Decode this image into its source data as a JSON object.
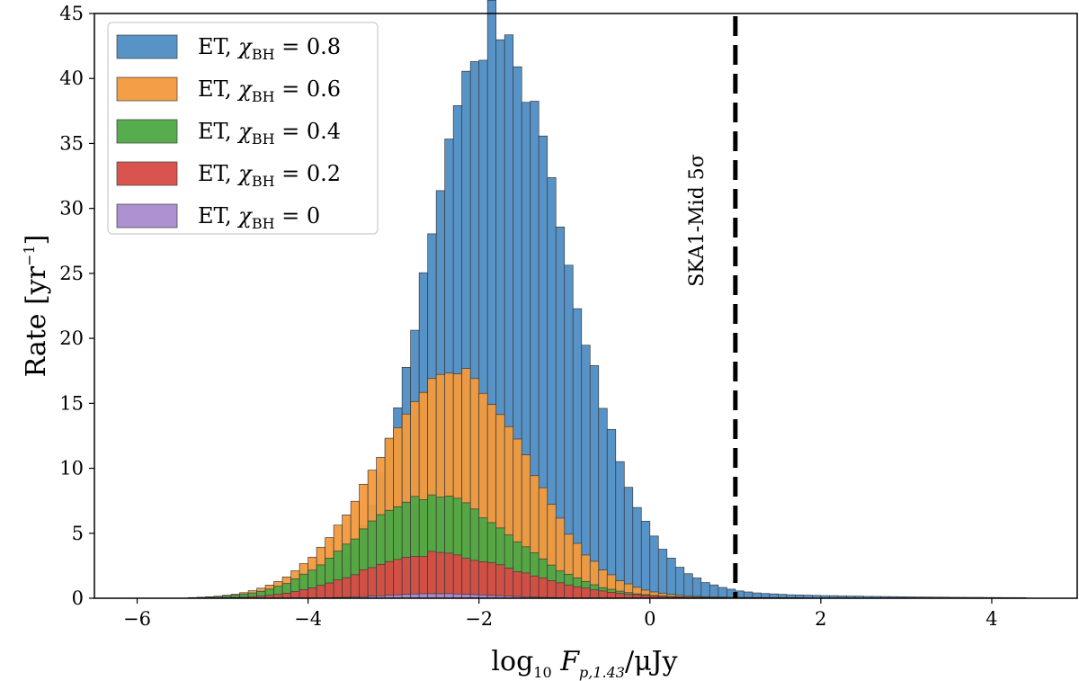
{
  "chart_data": {
    "type": "histogram",
    "title": "",
    "xlabel": {
      "main": "log",
      "sub": "10",
      "var": "F",
      "var_sub": "p,1.43",
      "unit": "/μJy"
    },
    "ylabel": {
      "main": "Rate [yr",
      "sup": "−1",
      "close": "]"
    },
    "xlim": [
      -6.5,
      5.0
    ],
    "ylim": [
      0,
      45
    ],
    "xticks": [
      -6,
      -4,
      -2,
      0,
      2,
      4
    ],
    "xtick_labels": [
      "−6",
      "−4",
      "−2",
      "0",
      "2",
      "4"
    ],
    "yticks": [
      0,
      5,
      10,
      15,
      20,
      25,
      30,
      35,
      40,
      45
    ],
    "ytick_labels": [
      "0",
      "5",
      "10",
      "15",
      "20",
      "25",
      "30",
      "35",
      "40",
      "45"
    ],
    "legend_position": "top-left",
    "bin_width": 0.1,
    "series": [
      {
        "name": "ET, χBH = 0.8",
        "label_prefix": "ET,",
        "label_var": "χ",
        "label_sub": "BH",
        "label_value": "= 0.8",
        "color": "#4e8dc4",
        "peak": 42.6,
        "center": -1.9,
        "sigma_left": 0.72,
        "sigma_right": 0.9,
        "tail_amp": 0.055
      },
      {
        "name": "ET, χBH = 0.6",
        "label_prefix": "ET,",
        "label_var": "χ",
        "label_sub": "BH",
        "label_value": "= 0.6",
        "color": "#f39a3d",
        "peak": 17.1,
        "center": -2.3,
        "sigma_left": 0.9,
        "sigma_right": 0.85,
        "tail_amp": 0.03
      },
      {
        "name": "ET, χBH = 0.4",
        "label_prefix": "ET,",
        "label_var": "χ",
        "label_sub": "BH",
        "label_value": "= 0.4",
        "color": "#4ea843",
        "peak": 7.7,
        "center": -2.6,
        "sigma_left": 0.85,
        "sigma_right": 0.95,
        "tail_amp": 0.04
      },
      {
        "name": "ET, χBH = 0.2",
        "label_prefix": "ET,",
        "label_var": "χ",
        "label_sub": "BH",
        "label_value": "= 0.2",
        "color": "#d84b46",
        "peak": 3.3,
        "center": -2.6,
        "sigma_left": 0.8,
        "sigma_right": 1.05,
        "tail_amp": 0.06
      },
      {
        "name": "ET, χBH = 0",
        "label_prefix": "ET,",
        "label_var": "χ",
        "label_sub": "BH",
        "label_value": "= 0",
        "color": "#a98bcf",
        "peak": 0.35,
        "center": -2.5,
        "sigma_left": 0.6,
        "sigma_right": 0.7,
        "tail_amp": 0.0
      }
    ],
    "annotations": [
      {
        "text": "SKA1-Mid 5σ",
        "x": 1.0,
        "style": "dashed-vertical-line",
        "color": "#000000"
      }
    ]
  }
}
